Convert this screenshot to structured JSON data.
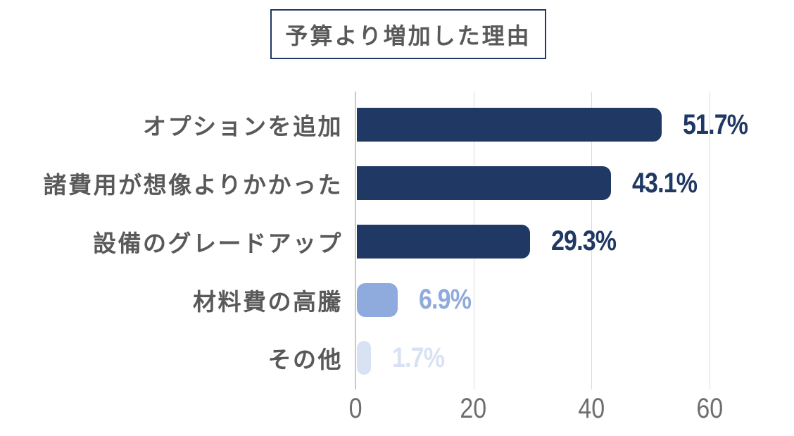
{
  "chart_data": {
    "type": "bar",
    "orientation": "horizontal",
    "title": "予算より増加した理由",
    "categories": [
      "オプションを追加",
      "諸費用が想像よりかかった",
      "設備のグレードアップ",
      "材料費の高騰",
      "その他"
    ],
    "values": [
      51.7,
      43.1,
      29.3,
      6.9,
      1.7
    ],
    "value_labels": [
      "51.7%",
      "43.1%",
      "29.3%",
      "6.9%",
      "1.7%"
    ],
    "bar_colors": [
      "#1F3864",
      "#1F3864",
      "#1F3864",
      "#8FAADC",
      "#D9E2F3"
    ],
    "x_ticks": [
      0,
      20,
      40,
      60
    ],
    "x_tick_labels": [
      "0",
      "20",
      "40",
      "60"
    ],
    "xlim": [
      0,
      74
    ],
    "grid": "vertical-gridlines-on",
    "legend": "none",
    "xlabel": "",
    "ylabel": ""
  },
  "colors": {
    "background": "#FFFFFF",
    "title_text": "#595959",
    "title_border": "#1F3864",
    "category_text": "#595959",
    "tick_text": "#6E6E6E",
    "gridline": "#DCDCDC",
    "axis_line": "#C9C9C9",
    "bar_dark": "#1F3864",
    "bar_medium": "#8FAADC",
    "bar_light": "#D9E2F3"
  }
}
